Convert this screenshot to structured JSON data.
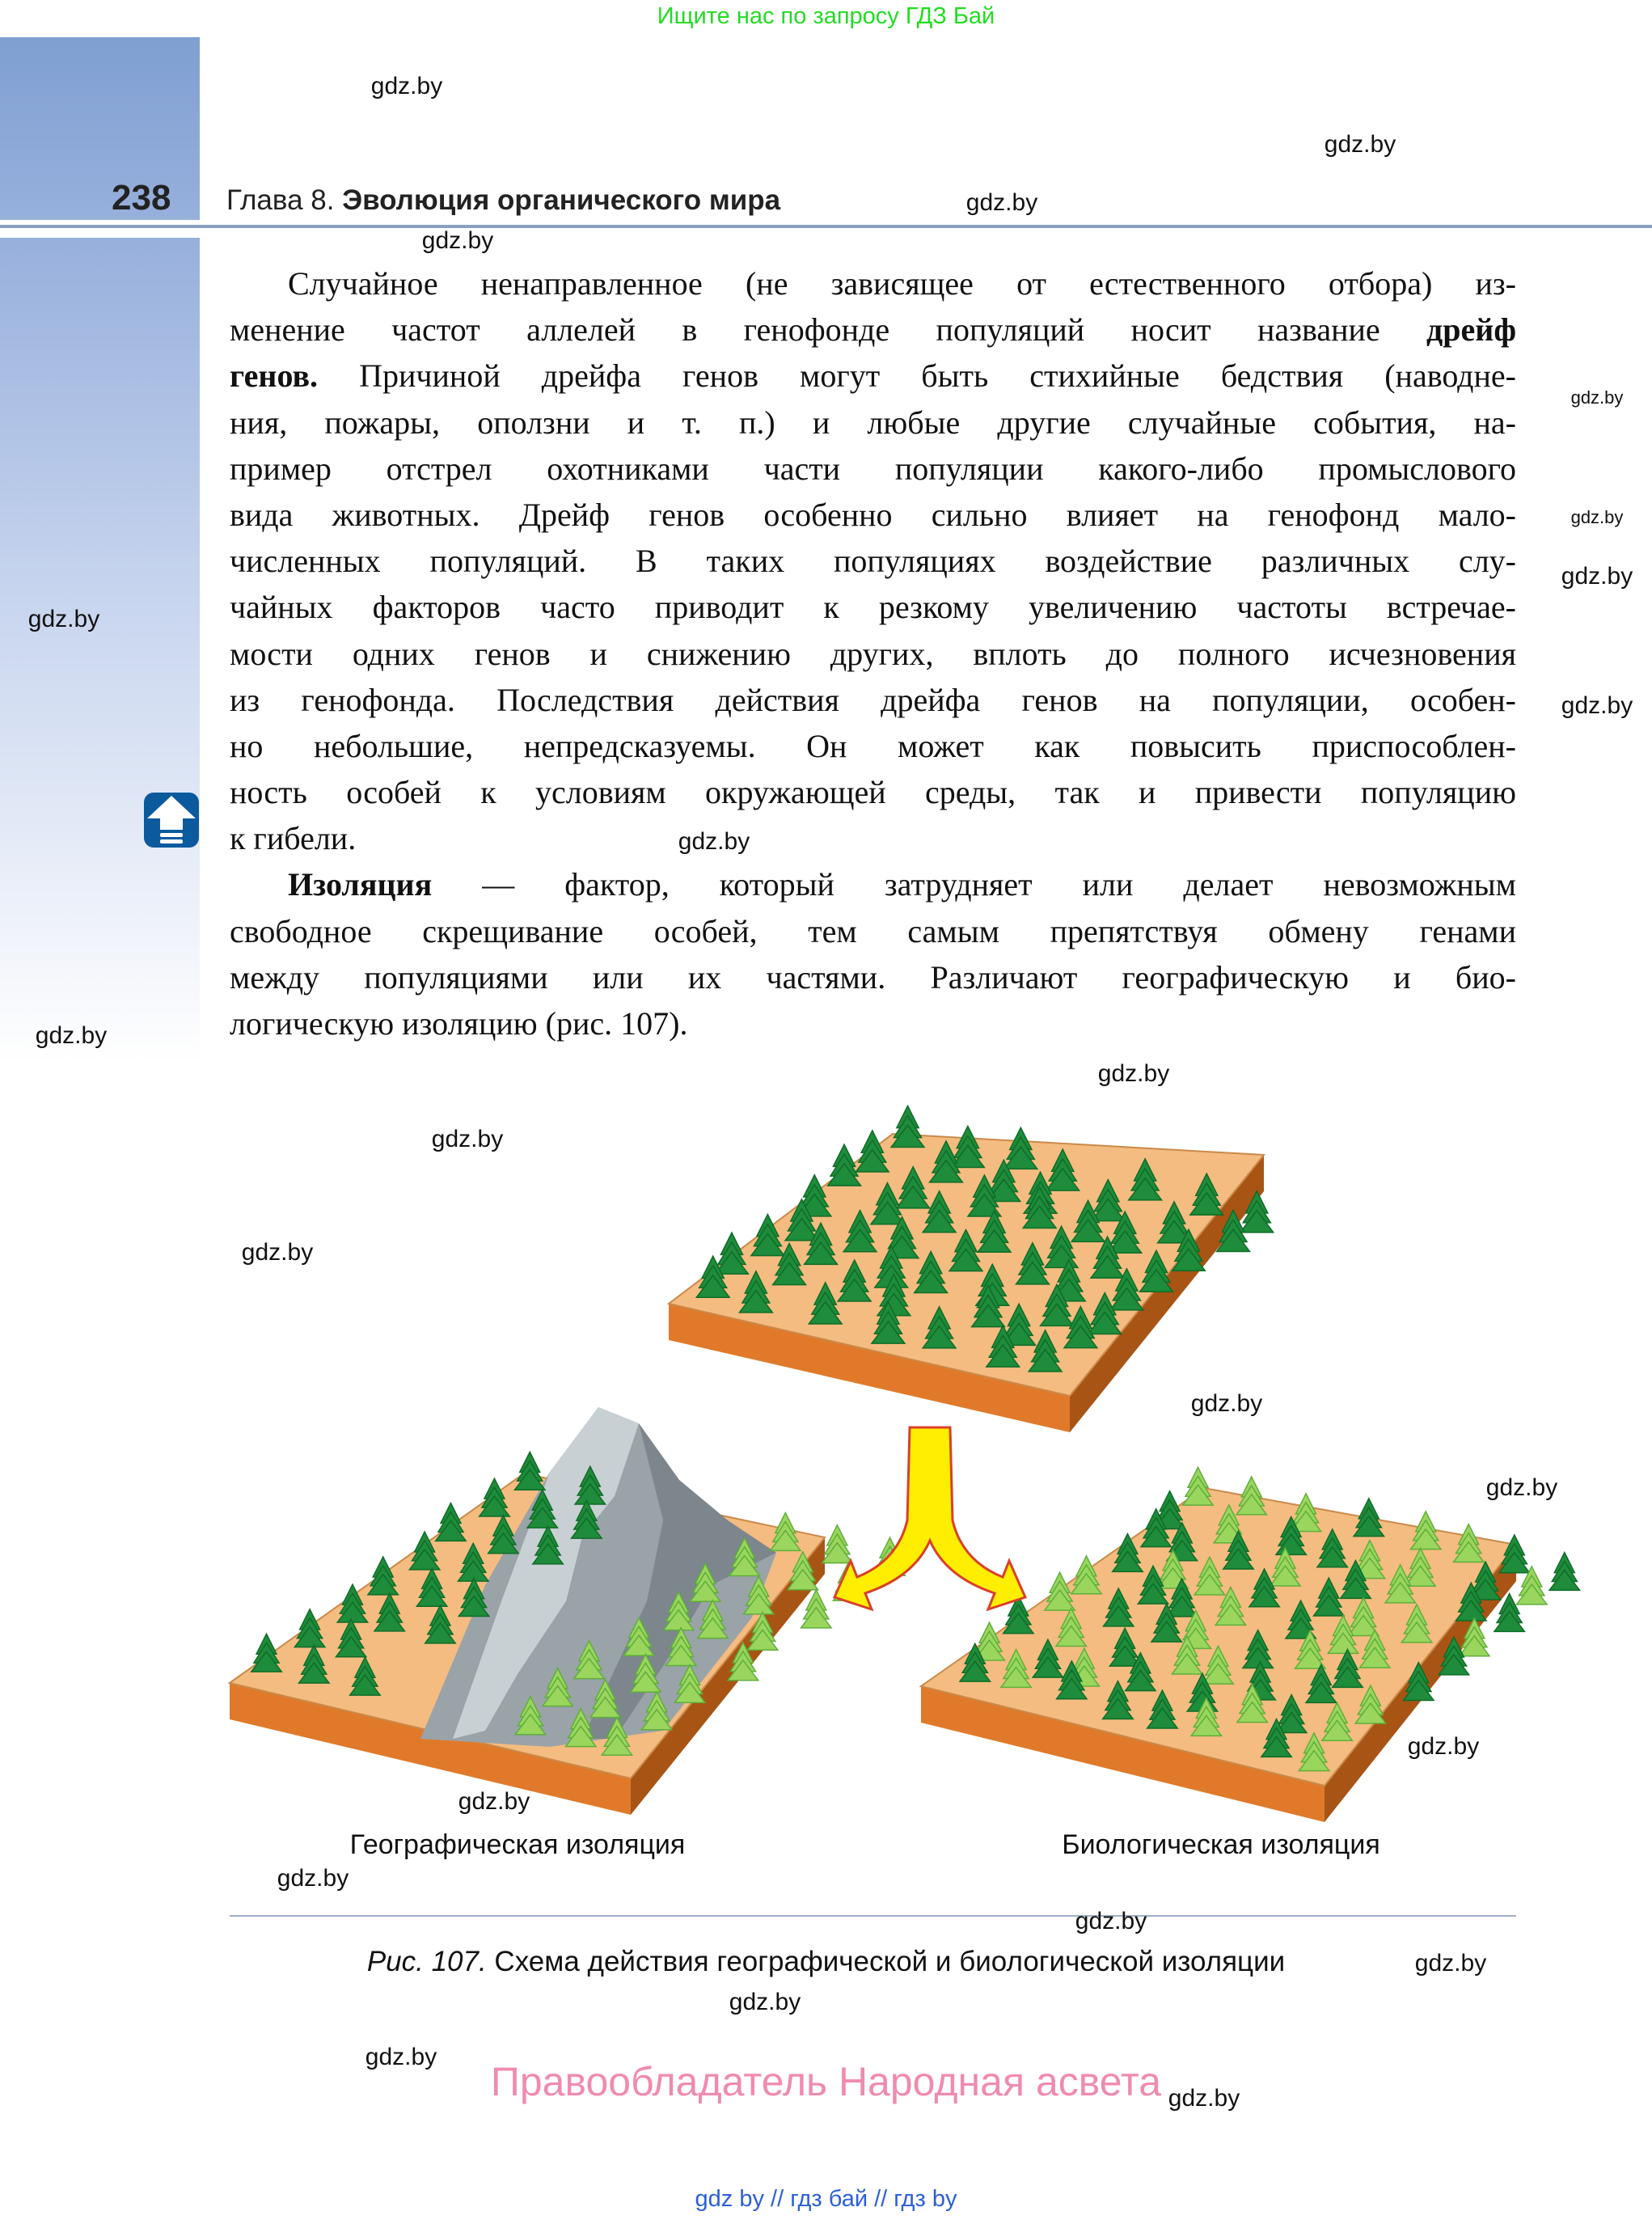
{
  "top_banner": "Ищите нас по запросу ГДЗ Бай",
  "header": {
    "page_number": "238",
    "chapter_prefix": "Глава 8.",
    "chapter_title": "Эволюция органического мира"
  },
  "watermark": "gdz.by",
  "body": {
    "paragraph1": [
      [
        "Случайное ненаправленное (не зависящее от естественного отбора) из-"
      ],
      [
        "менение частот аллелей в генофонде популяций носит название ",
        "дрейф"
      ],
      [
        "",
        "генов.",
        " Причиной дрейфа генов могут быть стихийные бедствия (наводне-"
      ],
      [
        "ния, пожары, оползни и т. п.) и любые другие случайные события, на-"
      ],
      [
        "пример отстрел охотниками части популяции какого-либо промыслового"
      ],
      [
        "вида животных. Дрейф генов особенно сильно влияет на генофонд мало-"
      ],
      [
        "численных популяций. В таких популяциях воздействие различных слу-"
      ],
      [
        "чайных факторов часто приводит к резкому увеличению частоты встречае-"
      ],
      [
        "мости одних генов и снижению других, вплоть до полного исчезновения"
      ],
      [
        "из генофонда. Последствия действия дрейфа генов на популяции, особен-"
      ],
      [
        "но небольшие, непредсказуемы. Он может как повысить приспособлен-"
      ],
      [
        "ность особей к условиям окружающей среды, так и привести популяцию"
      ],
      [
        "к гибели."
      ]
    ],
    "paragraph2_term": "Изоляция",
    "paragraph2": [
      " — фактор, который затрудняет или делает невозможным",
      "свободное скрещивание особей, тем самым препятствуя обмену генами",
      "между популяциями или их частями. Различают географическую и био-",
      "логическую изоляцию (рис. 107)."
    ]
  },
  "figure": {
    "label_left": "Географическая изоляция",
    "label_right": "Биологическая изоляция",
    "caption_prefix": "Рис. 107.",
    "caption_text": " Схема действия географической и биологической изоляции",
    "colors": {
      "ground_top": "#f4bc80",
      "ground_side": "#e07a2a",
      "tree_dark": "#1e8c3a",
      "tree_light": "#9ad65e",
      "arrow": "#ffee00",
      "mountain": "#9aa3a8"
    }
  },
  "rights": "Правообладатель Народная асвета",
  "footer": "gdz by  //  гдз бай  //  гдз by",
  "icons": {
    "section_marker": "up-arrow-icon"
  }
}
